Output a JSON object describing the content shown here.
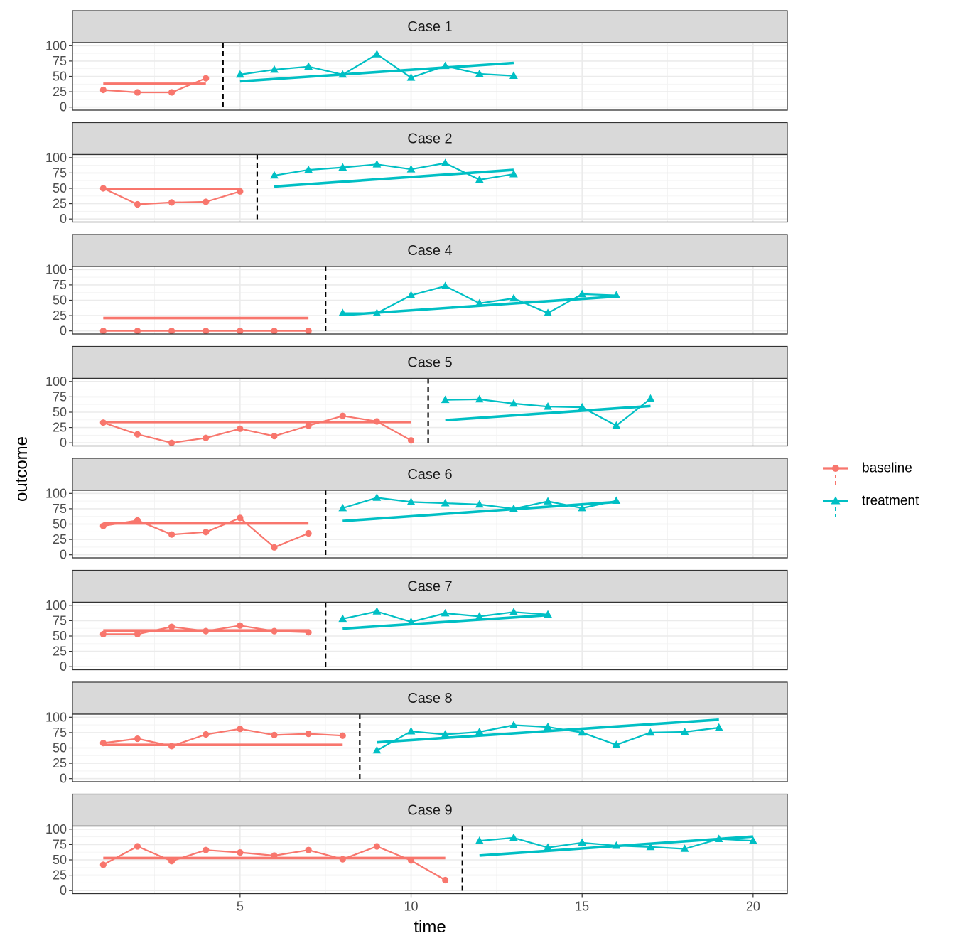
{
  "chart_data": {
    "type": "line",
    "xlabel": "time",
    "ylabel": "outcome",
    "xlim": [
      0.1,
      21.0
    ],
    "ylim": [
      -5,
      105
    ],
    "x_ticks": [
      5,
      10,
      15,
      20
    ],
    "y_ticks": [
      0,
      25,
      50,
      75,
      100
    ],
    "grid": true,
    "legend": {
      "position": "right",
      "entries": [
        {
          "name": "baseline",
          "color": "#F8766D",
          "marker": "circle"
        },
        {
          "name": "treatment",
          "color": "#00BFC4",
          "marker": "triangle"
        }
      ]
    },
    "colors": {
      "baseline": "#F8766D",
      "treatment": "#00BFC4",
      "phase_line": "#000000"
    },
    "panels": [
      {
        "title": "Case 1",
        "phase_change": 4.5,
        "baseline": {
          "x": [
            1,
            2,
            3,
            4
          ],
          "y": [
            28,
            24,
            24,
            47
          ]
        },
        "treatment": {
          "x": [
            5,
            6,
            7,
            8,
            9,
            10,
            11,
            12,
            13
          ],
          "y": [
            53,
            61,
            66,
            53,
            86,
            48,
            67,
            54,
            51
          ]
        },
        "baseline_trend": {
          "x": [
            1,
            4
          ],
          "y": [
            38,
            38
          ]
        },
        "treatment_trend": {
          "x": [
            5,
            13
          ],
          "y": [
            42,
            72
          ]
        }
      },
      {
        "title": "Case 2",
        "phase_change": 5.5,
        "baseline": {
          "x": [
            1,
            2,
            3,
            4,
            5
          ],
          "y": [
            50,
            24,
            27,
            28,
            45
          ]
        },
        "treatment": {
          "x": [
            6,
            7,
            8,
            9,
            10,
            11,
            12,
            13
          ],
          "y": [
            71,
            80,
            84,
            89,
            81,
            91,
            64,
            73
          ]
        },
        "baseline_trend": {
          "x": [
            1,
            5
          ],
          "y": [
            49,
            49
          ]
        },
        "treatment_trend": {
          "x": [
            6,
            13
          ],
          "y": [
            53,
            80
          ]
        }
      },
      {
        "title": "Case 4",
        "phase_change": 7.5,
        "baseline": {
          "x": [
            1,
            2,
            3,
            4,
            5,
            6,
            7
          ],
          "y": [
            0,
            0,
            0,
            0,
            0,
            0,
            0
          ]
        },
        "treatment": {
          "x": [
            8,
            9,
            10,
            11,
            12,
            13,
            14,
            15,
            16
          ],
          "y": [
            29,
            29,
            58,
            73,
            45,
            53,
            29,
            60,
            58
          ]
        },
        "baseline_trend": {
          "x": [
            1,
            7
          ],
          "y": [
            21,
            21
          ]
        },
        "treatment_trend": {
          "x": [
            8,
            16
          ],
          "y": [
            26,
            56
          ]
        }
      },
      {
        "title": "Case 5",
        "phase_change": 10.5,
        "baseline": {
          "x": [
            1,
            2,
            3,
            4,
            5,
            6,
            7,
            8,
            9,
            10
          ],
          "y": [
            33,
            14,
            0,
            8,
            23,
            11,
            28,
            44,
            35,
            4
          ]
        },
        "treatment": {
          "x": [
            11,
            12,
            13,
            14,
            15,
            16,
            17
          ],
          "y": [
            70,
            71,
            64,
            59,
            58,
            28,
            72
          ]
        },
        "baseline_trend": {
          "x": [
            1,
            10
          ],
          "y": [
            34,
            34
          ]
        },
        "treatment_trend": {
          "x": [
            11,
            17
          ],
          "y": [
            37,
            60
          ]
        }
      },
      {
        "title": "Case 6",
        "phase_change": 7.5,
        "baseline": {
          "x": [
            1,
            2,
            3,
            4,
            5,
            6,
            7
          ],
          "y": [
            47,
            56,
            33,
            37,
            60,
            12,
            35
          ]
        },
        "treatment": {
          "x": [
            8,
            9,
            10,
            11,
            12,
            13,
            14,
            15,
            16
          ],
          "y": [
            76,
            93,
            86,
            84,
            82,
            75,
            87,
            76,
            88
          ]
        },
        "baseline_trend": {
          "x": [
            1,
            7
          ],
          "y": [
            51,
            51
          ]
        },
        "treatment_trend": {
          "x": [
            8,
            16
          ],
          "y": [
            55,
            86
          ]
        }
      },
      {
        "title": "Case 7",
        "phase_change": 7.5,
        "baseline": {
          "x": [
            1,
            2,
            3,
            4,
            5,
            6,
            7
          ],
          "y": [
            53,
            53,
            65,
            58,
            67,
            58,
            56
          ]
        },
        "treatment": {
          "x": [
            8,
            9,
            10,
            11,
            12,
            13,
            14
          ],
          "y": [
            78,
            90,
            73,
            87,
            82,
            89,
            85
          ]
        },
        "baseline_trend": {
          "x": [
            1,
            7
          ],
          "y": [
            59,
            59
          ]
        },
        "treatment_trend": {
          "x": [
            8,
            14
          ],
          "y": [
            62,
            84
          ]
        }
      },
      {
        "title": "Case 8",
        "phase_change": 8.5,
        "baseline": {
          "x": [
            1,
            2,
            3,
            4,
            5,
            6,
            7,
            8
          ],
          "y": [
            58,
            65,
            53,
            72,
            81,
            71,
            73,
            70
          ]
        },
        "treatment": {
          "x": [
            9,
            10,
            11,
            12,
            13,
            14,
            15,
            16,
            17,
            18,
            19
          ],
          "y": [
            46,
            77,
            72,
            76,
            87,
            84,
            75,
            55,
            75,
            76,
            83
          ]
        },
        "baseline_trend": {
          "x": [
            1,
            8
          ],
          "y": [
            55,
            55
          ]
        },
        "treatment_trend": {
          "x": [
            9,
            19
          ],
          "y": [
            59,
            96
          ]
        }
      },
      {
        "title": "Case 9",
        "phase_change": 11.5,
        "baseline": {
          "x": [
            1,
            2,
            3,
            4,
            5,
            6,
            7,
            8,
            9,
            10,
            11
          ],
          "y": [
            42,
            72,
            48,
            66,
            62,
            57,
            66,
            51,
            72,
            49,
            17
          ]
        },
        "treatment": {
          "x": [
            12,
            13,
            14,
            15,
            16,
            17,
            18,
            19,
            20
          ],
          "y": [
            81,
            86,
            70,
            78,
            73,
            71,
            68,
            84,
            81
          ]
        },
        "baseline_trend": {
          "x": [
            1,
            11
          ],
          "y": [
            53,
            53
          ]
        },
        "treatment_trend": {
          "x": [
            12,
            20
          ],
          "y": [
            57,
            88
          ]
        }
      }
    ]
  }
}
